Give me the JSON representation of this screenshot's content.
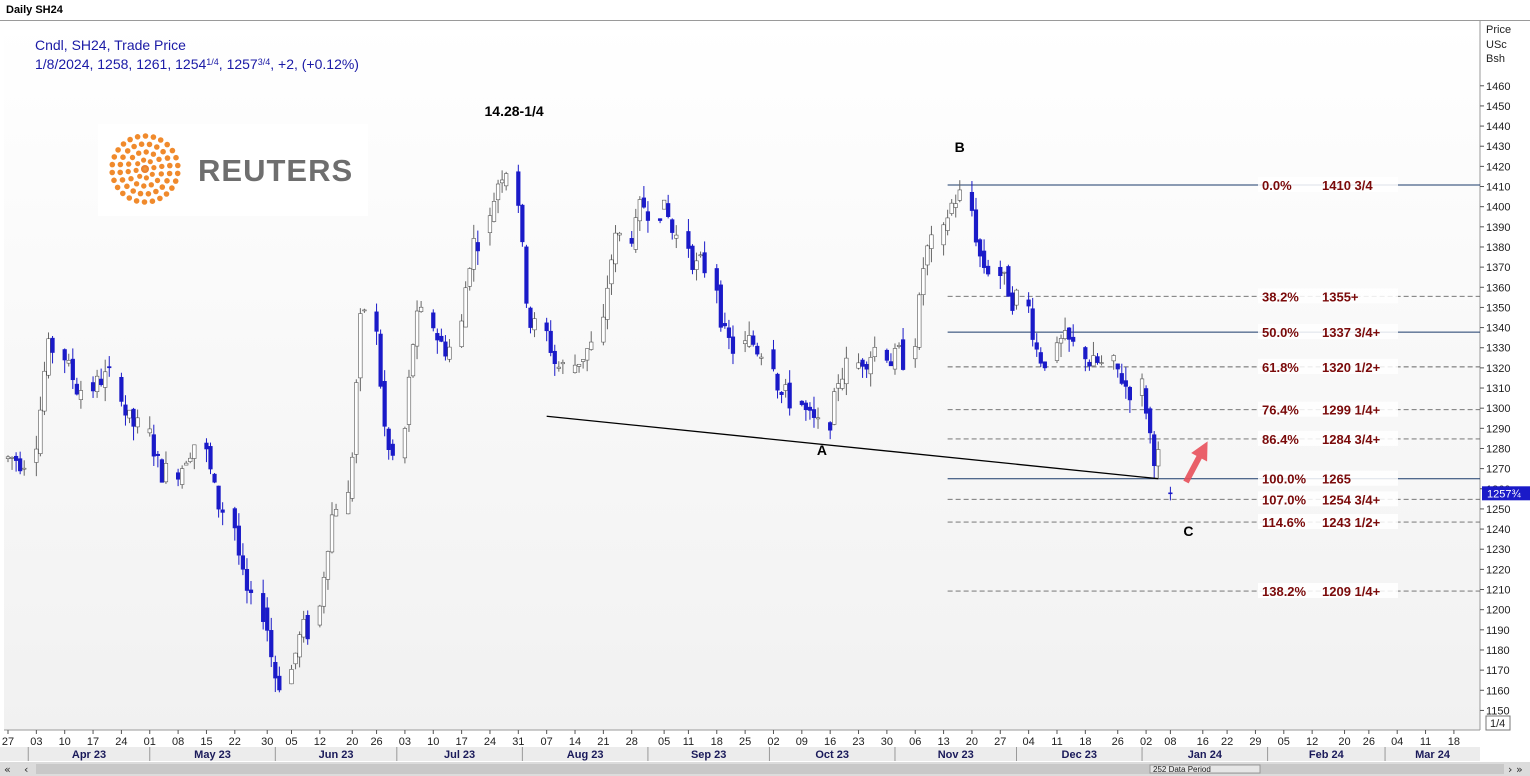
{
  "window": {
    "title": "Daily SH24"
  },
  "info": {
    "line1": "Cndl, SH24, Trade Price",
    "line2_date": "1/8/2024, 1258, 1261, 1254",
    "line2_frac1": "1/4",
    "line2_mid": ", 1257",
    "line2_frac2": "3/4",
    "line2_end": ", +2, (+0.12%)"
  },
  "logo": {
    "text": "REUTERS",
    "color": "#f08a2c"
  },
  "axis": {
    "right_header": [
      "Price",
      "USc",
      "Bsh"
    ],
    "current_price_label": "1257¾",
    "bottom_right_label": "1/4",
    "period_label": "252 Data Period",
    "day_ticks": [
      "27",
      "03",
      "10",
      "17",
      "24",
      "01",
      "08",
      "15",
      "22",
      "30",
      "05",
      "12",
      "20",
      "26",
      "03",
      "10",
      "17",
      "24",
      "31",
      "07",
      "14",
      "21",
      "28",
      "05",
      "11",
      "18",
      "25",
      "02",
      "09",
      "16",
      "23",
      "30",
      "06",
      "13",
      "20",
      "27",
      "04",
      "11",
      "18",
      "26",
      "02",
      "08",
      "16",
      "22",
      "29",
      "05",
      "12",
      "20",
      "26",
      "04",
      "11",
      "18"
    ],
    "month_labels": [
      "Apr 23",
      "May 23",
      "Jun 23",
      "Jul 23",
      "Aug 23",
      "Sep 23",
      "Oct 23",
      "Nov 23",
      "Dec 23",
      "Jan 24",
      "Feb 24",
      "Mar 24"
    ]
  },
  "colors": {
    "up": "#ffffff",
    "down": "#1a1ac8",
    "fib_text": "#7a0a0a",
    "fib_line": "#1a3a6a",
    "arrow": "#e8505a",
    "info": "#1a1aa6"
  },
  "annotations": {
    "peak_label": "14.28-1/4",
    "A": "A",
    "B": "B",
    "C": "C"
  },
  "chart_data": {
    "type": "candlestick",
    "title": "Daily SH24",
    "ylabel": "Price USc Bsh",
    "ylim": [
      1140,
      1470
    ],
    "y_ticks": [
      1150,
      1160,
      1170,
      1180,
      1190,
      1200,
      1210,
      1220,
      1230,
      1240,
      1250,
      1260,
      1270,
      1280,
      1290,
      1300,
      1310,
      1320,
      1330,
      1340,
      1350,
      1360,
      1370,
      1380,
      1390,
      1400,
      1410,
      1420,
      1430,
      1440,
      1450,
      1460
    ],
    "x_range": [
      "2023-03-27",
      "2024-03-20"
    ],
    "grid": false,
    "fib_levels": [
      {
        "pct": "0.0%",
        "price": "1410 3/4",
        "value": 1410.75,
        "style": "solid"
      },
      {
        "pct": "38.2%",
        "price": "1355+",
        "value": 1355.5,
        "style": "dashed"
      },
      {
        "pct": "50.0%",
        "price": "1337 3/4+",
        "value": 1337.75,
        "style": "solid"
      },
      {
        "pct": "61.8%",
        "price": "1320 1/2+",
        "value": 1320.5,
        "style": "dashed"
      },
      {
        "pct": "76.4%",
        "price": "1299 1/4+",
        "value": 1299.25,
        "style": "dashed"
      },
      {
        "pct": "86.4%",
        "price": "1284 3/4+",
        "value": 1284.75,
        "style": "dashed"
      },
      {
        "pct": "100.0%",
        "price": "1265",
        "value": 1265,
        "style": "solid"
      },
      {
        "pct": "107.0%",
        "price": "1254 3/4+",
        "value": 1254.75,
        "style": "dashed"
      },
      {
        "pct": "114.6%",
        "price": "1243 1/2+",
        "value": 1243.5,
        "style": "dashed"
      },
      {
        "pct": "138.2%",
        "price": "1209 1/4+",
        "value": 1209.25,
        "style": "dashed"
      }
    ],
    "fib_start_date": "2023-11-14",
    "trendline": [
      {
        "date": "2023-08-07",
        "value": 1296
      },
      {
        "date": "2024-01-05",
        "value": 1265
      }
    ],
    "anchors": {
      "peak": {
        "date": "2023-07-27",
        "value": 1428.25
      },
      "A": {
        "date": "2023-10-12",
        "value": 1283
      },
      "B": {
        "date": "2023-11-14",
        "value": 1410.75
      },
      "C": {
        "date": "2024-01-08",
        "value": 1254.25
      }
    },
    "last_candle": {
      "date": "2024-01-08",
      "open": 1258,
      "high": 1261,
      "low": 1254.25,
      "close": 1257.75,
      "change": 2,
      "change_pct": "+0.12%"
    },
    "series": [
      {
        "name": "SH24",
        "points": [
          {
            "date": "2023-03-27",
            "value": 1275
          },
          {
            "date": "2023-04-03",
            "value": 1330
          },
          {
            "date": "2023-04-10",
            "value": 1310
          },
          {
            "date": "2023-04-17",
            "value": 1315
          },
          {
            "date": "2023-04-24",
            "value": 1290
          },
          {
            "date": "2023-05-01",
            "value": 1268
          },
          {
            "date": "2023-05-08",
            "value": 1283
          },
          {
            "date": "2023-05-15",
            "value": 1250
          },
          {
            "date": "2023-05-22",
            "value": 1200
          },
          {
            "date": "2023-05-30",
            "value": 1165
          },
          {
            "date": "2023-06-05",
            "value": 1190
          },
          {
            "date": "2023-06-12",
            "value": 1255
          },
          {
            "date": "2023-06-20",
            "value": 1350
          },
          {
            "date": "2023-06-26",
            "value": 1275
          },
          {
            "date": "2023-07-03",
            "value": 1345
          },
          {
            "date": "2023-07-10",
            "value": 1330
          },
          {
            "date": "2023-07-17",
            "value": 1385
          },
          {
            "date": "2023-07-24",
            "value": 1420
          },
          {
            "date": "2023-07-31",
            "value": 1340
          },
          {
            "date": "2023-08-07",
            "value": 1320
          },
          {
            "date": "2023-08-14",
            "value": 1330
          },
          {
            "date": "2023-08-21",
            "value": 1385
          },
          {
            "date": "2023-08-28",
            "value": 1400
          },
          {
            "date": "2023-09-05",
            "value": 1385
          },
          {
            "date": "2023-09-11",
            "value": 1370
          },
          {
            "date": "2023-09-18",
            "value": 1330
          },
          {
            "date": "2023-09-25",
            "value": 1330
          },
          {
            "date": "2023-10-02",
            "value": 1305
          },
          {
            "date": "2023-10-09",
            "value": 1290
          },
          {
            "date": "2023-10-16",
            "value": 1320
          },
          {
            "date": "2023-10-23",
            "value": 1330
          },
          {
            "date": "2023-10-30",
            "value": 1325
          },
          {
            "date": "2023-11-06",
            "value": 1380
          },
          {
            "date": "2023-11-13",
            "value": 1405
          },
          {
            "date": "2023-11-20",
            "value": 1370
          },
          {
            "date": "2023-11-27",
            "value": 1355
          },
          {
            "date": "2023-12-04",
            "value": 1325
          },
          {
            "date": "2023-12-11",
            "value": 1330
          },
          {
            "date": "2023-12-18",
            "value": 1320
          },
          {
            "date": "2023-12-26",
            "value": 1310
          },
          {
            "date": "2024-01-02",
            "value": 1275
          },
          {
            "date": "2024-01-08",
            "value": 1257.75
          }
        ]
      }
    ]
  }
}
